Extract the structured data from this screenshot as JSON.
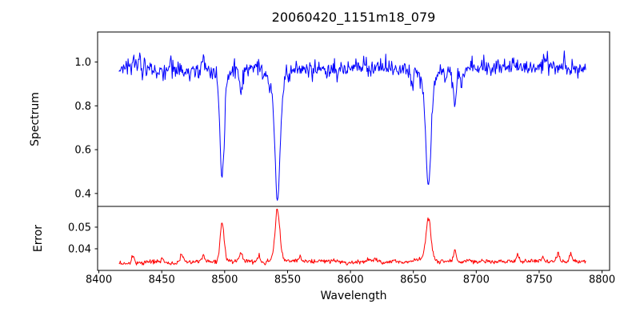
{
  "chart_data": {
    "type": "line",
    "title": "20060420_1151m18_079",
    "xlabel": "Wavelength",
    "grid": false,
    "legend": null,
    "background_color": "#ffffff",
    "axes_color": "#000000",
    "x_range": [
      8399,
      8806
    ],
    "x_data_range": [
      8416,
      8787
    ],
    "n_points": 720,
    "xticks": [
      {
        "value": 8400,
        "label": "8400"
      },
      {
        "value": 8450,
        "label": "8450"
      },
      {
        "value": 8500,
        "label": "8500"
      },
      {
        "value": 8550,
        "label": "8550"
      },
      {
        "value": 8600,
        "label": "8600"
      },
      {
        "value": 8650,
        "label": "8650"
      },
      {
        "value": 8700,
        "label": "8700"
      },
      {
        "value": 8750,
        "label": "8750"
      },
      {
        "value": 8800,
        "label": "8800"
      }
    ],
    "panels": [
      {
        "name": "spectrum",
        "ylabel": "Spectrum",
        "line_color": "#0000ff",
        "ylim": [
          0.341,
          1.137
        ],
        "yticks": [
          {
            "value": 1.0,
            "label": "1.0"
          },
          {
            "value": 0.8,
            "label": "0.8"
          },
          {
            "value": 0.6,
            "label": "0.6"
          },
          {
            "value": 0.4,
            "label": "0.4"
          }
        ],
        "continuum": 0.972,
        "noise": {
          "high": 0.04,
          "spike": 0.34,
          "low": 0.025,
          "low_period": 10
        },
        "absorption_lines": [
          {
            "center": 8498,
            "depth": 0.42,
            "sigma": 1.6,
            "wing_depth": 0.08,
            "wing_sigma": 4.0
          },
          {
            "center": 8542,
            "depth": 0.48,
            "sigma": 1.9,
            "wing_depth": 0.12,
            "wing_sigma": 5.0
          },
          {
            "center": 8662,
            "depth": 0.44,
            "sigma": 1.9,
            "wing_depth": 0.1,
            "wing_sigma": 5.0
          },
          {
            "center": 8513,
            "depth": 0.1,
            "sigma": 1.3
          },
          {
            "center": 8434,
            "depth": 0.06,
            "sigma": 1.0
          },
          {
            "center": 8446,
            "depth": 0.05,
            "sigma": 0.8
          },
          {
            "center": 8468,
            "depth": 0.05,
            "sigma": 0.8
          },
          {
            "center": 8590,
            "depth": 0.05,
            "sigma": 0.8
          },
          {
            "center": 8649,
            "depth": 0.06,
            "sigma": 1.0
          },
          {
            "center": 8683,
            "depth": 0.17,
            "sigma": 1.2
          },
          {
            "center": 8688,
            "depth": 0.08,
            "sigma": 1.0
          },
          {
            "center": 8433,
            "depth": -0.1,
            "sigma": 0.7
          },
          {
            "center": 8549,
            "depth": -0.05,
            "sigma": 0.7
          },
          {
            "center": 8756,
            "depth": -0.07,
            "sigma": 0.8
          },
          {
            "center": 8770,
            "depth": -0.05,
            "sigma": 0.7
          }
        ],
        "sampled_points": {
          "x": [
            8420,
            8430,
            8440,
            8450,
            8460,
            8470,
            8480,
            8490,
            8500,
            8510,
            8520,
            8530,
            8540,
            8550,
            8560,
            8570,
            8580,
            8590,
            8600,
            8610,
            8620,
            8630,
            8640,
            8650,
            8660,
            8670,
            8680,
            8690,
            8700,
            8710,
            8720,
            8730,
            8740,
            8750,
            8760,
            8770,
            8780
          ],
          "y": [
            0.97,
            1.02,
            0.96,
            0.97,
            0.95,
            0.98,
            0.97,
            0.95,
            0.72,
            0.87,
            0.97,
            0.95,
            0.45,
            0.85,
            0.95,
            0.98,
            0.99,
            0.96,
            0.97,
            0.98,
            0.96,
            0.97,
            0.96,
            0.93,
            0.48,
            0.9,
            0.82,
            0.93,
            0.97,
            0.98,
            0.95,
            0.98,
            0.97,
            0.96,
            1.0,
            0.98,
            0.97
          ]
        },
        "line_minima": [
          {
            "wavelength": 8498,
            "flux": 0.49
          },
          {
            "wavelength": 8542,
            "flux": 0.38
          },
          {
            "wavelength": 8662,
            "flux": 0.43
          }
        ]
      },
      {
        "name": "error",
        "ylabel": "Error",
        "line_color": "#ff0000",
        "ylim": [
          0.03,
          0.0596
        ],
        "yticks": [
          {
            "value": 0.05,
            "label": "0.05"
          },
          {
            "value": 0.04,
            "label": "0.04"
          }
        ],
        "baseline": 0.0336,
        "baseline_slope": 2.2e-06,
        "noise": {
          "high": 0.0012,
          "spike": 0.008,
          "low": 0.0012,
          "low_period": 12
        },
        "peaks": [
          {
            "center": 8498,
            "height": 0.0175,
            "sigma": 1.5,
            "wing_height": 0.0015,
            "wing_sigma": 4.0
          },
          {
            "center": 8542,
            "height": 0.022,
            "sigma": 1.8,
            "wing_height": 0.002,
            "wing_sigma": 5.0
          },
          {
            "center": 8662,
            "height": 0.018,
            "sigma": 1.8,
            "wing_height": 0.002,
            "wing_sigma": 5.0
          },
          {
            "center": 8427,
            "height": 0.0035,
            "sigma": 1.0
          },
          {
            "center": 8450,
            "height": 0.002,
            "sigma": 1.0
          },
          {
            "center": 8466,
            "height": 0.0035,
            "sigma": 1.0
          },
          {
            "center": 8483,
            "height": 0.003,
            "sigma": 1.0
          },
          {
            "center": 8513,
            "height": 0.004,
            "sigma": 1.2
          },
          {
            "center": 8527,
            "height": 0.0035,
            "sigma": 1.0
          },
          {
            "center": 8560,
            "height": 0.002,
            "sigma": 0.8
          },
          {
            "center": 8620,
            "height": 0.0015,
            "sigma": 0.8
          },
          {
            "center": 8683,
            "height": 0.005,
            "sigma": 1.0
          },
          {
            "center": 8733,
            "height": 0.004,
            "sigma": 1.0
          },
          {
            "center": 8753,
            "height": 0.002,
            "sigma": 0.8
          },
          {
            "center": 8765,
            "height": 0.004,
            "sigma": 1.2
          },
          {
            "center": 8775,
            "height": 0.003,
            "sigma": 1.0
          }
        ],
        "sampled_points": {
          "x": [
            8420,
            8430,
            8440,
            8450,
            8460,
            8470,
            8480,
            8490,
            8500,
            8510,
            8520,
            8530,
            8540,
            8550,
            8560,
            8570,
            8580,
            8590,
            8600,
            8610,
            8620,
            8630,
            8640,
            8650,
            8660,
            8670,
            8680,
            8690,
            8700,
            8710,
            8720,
            8730,
            8740,
            8750,
            8760,
            8770,
            8780
          ],
          "y": [
            0.0335,
            0.036,
            0.0335,
            0.035,
            0.034,
            0.035,
            0.034,
            0.035,
            0.04,
            0.037,
            0.035,
            0.035,
            0.053,
            0.037,
            0.035,
            0.034,
            0.034,
            0.034,
            0.034,
            0.034,
            0.034,
            0.034,
            0.034,
            0.035,
            0.051,
            0.036,
            0.037,
            0.035,
            0.034,
            0.034,
            0.034,
            0.036,
            0.034,
            0.035,
            0.036,
            0.038,
            0.035
          ]
        },
        "peak_maxima": [
          {
            "wavelength": 8498,
            "error": 0.052
          },
          {
            "wavelength": 8542,
            "error": 0.058
          },
          {
            "wavelength": 8662,
            "error": 0.053
          }
        ]
      }
    ]
  }
}
